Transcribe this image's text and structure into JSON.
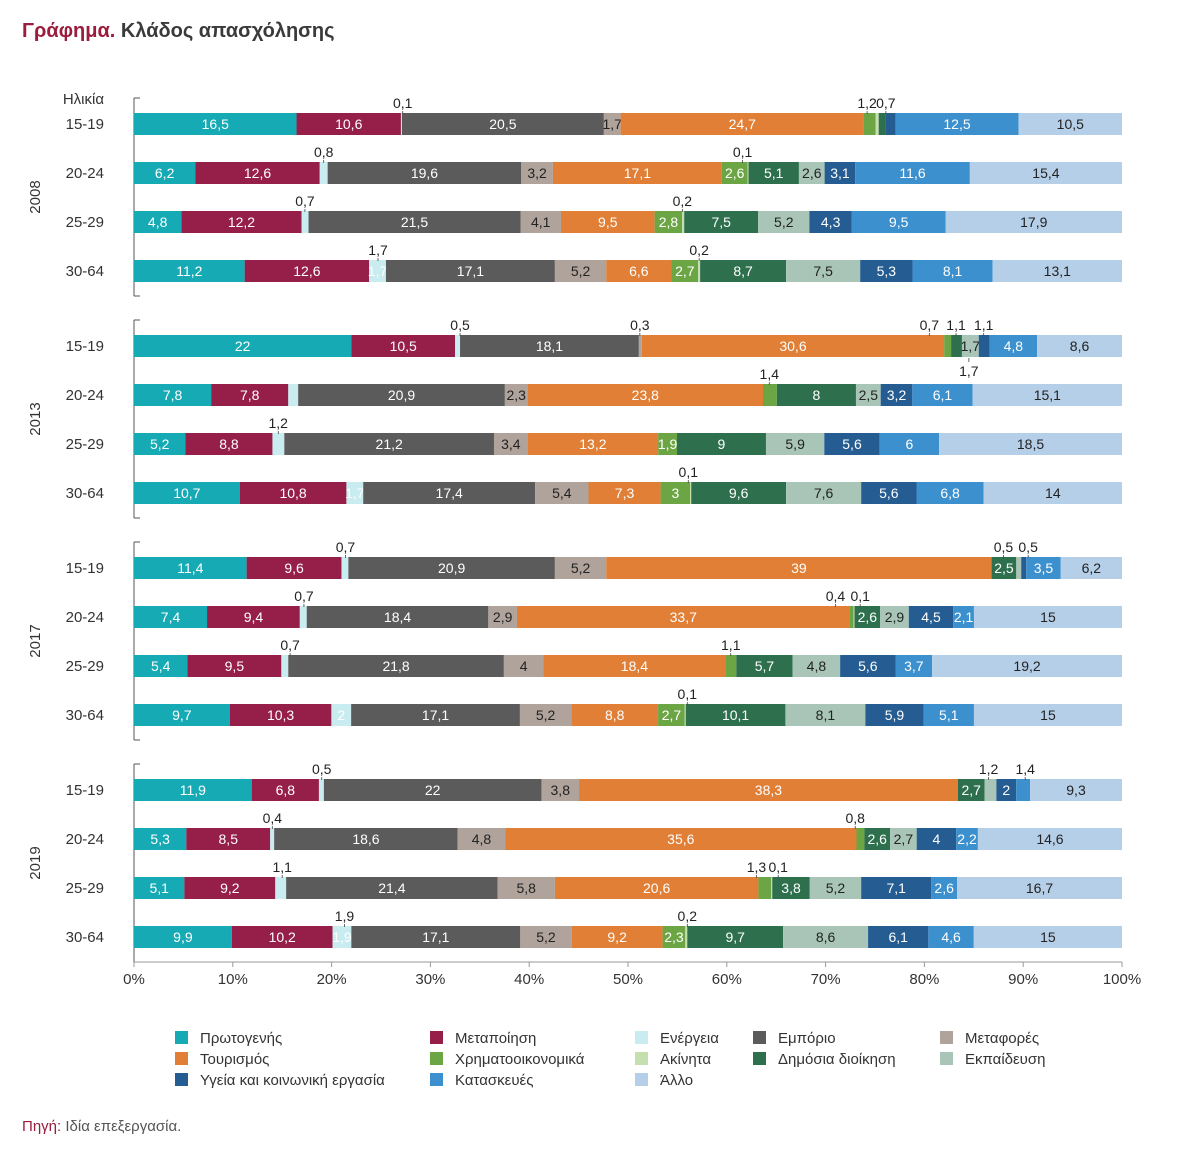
{
  "title_lead": "Γράφημα.",
  "title_rest": "Κλάδος απασχόλησης",
  "age_header": "Ηλικία",
  "source_label": "Πηγή:",
  "source_text": "Ιδία επεξεργασία.",
  "chart_data": {
    "type": "bar",
    "orientation": "horizontal",
    "stacked": "percent",
    "title": "Κλάδος απασχόλησης",
    "xlim": [
      0,
      100
    ],
    "x_ticks": [
      "0%",
      "10%",
      "20%",
      "30%",
      "40%",
      "50%",
      "60%",
      "70%",
      "80%",
      "90%",
      "100%"
    ],
    "grid": false,
    "legend_position": "bottom",
    "series": [
      {
        "name": "Πρωτογενής",
        "color": "#16aab5"
      },
      {
        "name": "Μεταποίηση",
        "color": "#961f4a"
      },
      {
        "name": "Ενέργεια",
        "color": "#c8ecef"
      },
      {
        "name": "Εμπόριο",
        "color": "#5b5b5b"
      },
      {
        "name": "Μεταφορές",
        "color": "#afa39b"
      },
      {
        "name": "Τουρισμός",
        "color": "#e07f35"
      },
      {
        "name": "Χρηματοοικονομικά",
        "color": "#6ca544"
      },
      {
        "name": "Ακίνητα",
        "color": "#c5dfae"
      },
      {
        "name": "Δημόσια διοίκηση",
        "color": "#2e704d"
      },
      {
        "name": "Εκπαίδευση",
        "color": "#a9c5b8"
      },
      {
        "name": "Υγεία και κοινωνική εργασία",
        "color": "#255c91"
      },
      {
        "name": "Κατασκευές",
        "color": "#3c90cd"
      },
      {
        "name": "Άλλο",
        "color": "#b6cfe8"
      }
    ],
    "groups": [
      {
        "year": "2008",
        "rows": [
          {
            "age": "15-19",
            "values": [
              16.5,
              10.6,
              0.1,
              20.5,
              1.7,
              24.7,
              1.2,
              0.3,
              0.7,
              0,
              1,
              12.5,
              10.5
            ]
          },
          {
            "age": "20-24",
            "values": [
              6.2,
              12.6,
              0.8,
              19.6,
              3.2,
              17.1,
              2.6,
              0.1,
              5.1,
              2.6,
              3.1,
              11.6,
              15.4
            ]
          },
          {
            "age": "25-29",
            "values": [
              4.8,
              12.2,
              0.7,
              21.5,
              4.1,
              9.5,
              2.8,
              0.2,
              7.5,
              5.2,
              4.3,
              9.5,
              17.9
            ]
          },
          {
            "age": "30-64",
            "values": [
              11.2,
              12.6,
              1.7,
              17.1,
              5.2,
              6.6,
              2.7,
              0.2,
              8.7,
              7.5,
              5.3,
              8.1,
              13.1
            ]
          }
        ]
      },
      {
        "year": "2013",
        "rows": [
          {
            "age": "15-19",
            "values": [
              22,
              10.5,
              0.5,
              18.1,
              0.3,
              30.6,
              0.7,
              0,
              1.1,
              1.7,
              1.1,
              4.8,
              8.6
            ]
          },
          {
            "age": "20-24",
            "values": [
              7.8,
              7.8,
              1,
              20.9,
              2.3,
              23.8,
              1.4,
              0,
              8,
              2.5,
              3.2,
              6.1,
              15.1
            ]
          },
          {
            "age": "25-29",
            "values": [
              5.2,
              8.8,
              1.2,
              21.2,
              3.4,
              13.2,
              1.9,
              0,
              9,
              5.9,
              5.6,
              6,
              18.5
            ]
          },
          {
            "age": "30-64",
            "values": [
              10.7,
              10.8,
              1.7,
              17.4,
              5.4,
              7.3,
              3,
              0.1,
              9.6,
              7.6,
              5.6,
              6.8,
              14
            ]
          }
        ]
      },
      {
        "year": "2017",
        "rows": [
          {
            "age": "15-19",
            "values": [
              11.4,
              9.6,
              0.7,
              20.9,
              5.2,
              39,
              0,
              0,
              2.5,
              0.5,
              0.5,
              3.5,
              6.2
            ]
          },
          {
            "age": "20-24",
            "values": [
              7.4,
              9.4,
              0.7,
              18.4,
              2.9,
              33.7,
              0.4,
              0.1,
              2.6,
              2.9,
              4.5,
              2.1,
              15
            ]
          },
          {
            "age": "25-29",
            "values": [
              5.4,
              9.5,
              0.7,
              21.8,
              4,
              18.4,
              1.1,
              0,
              5.7,
              4.8,
              5.6,
              3.7,
              19.2
            ]
          },
          {
            "age": "30-64",
            "values": [
              9.7,
              10.3,
              2,
              17.1,
              5.2,
              8.8,
              2.7,
              0.1,
              10.1,
              8.1,
              5.9,
              5.1,
              15
            ]
          }
        ]
      },
      {
        "year": "2019",
        "rows": [
          {
            "age": "15-19",
            "values": [
              11.9,
              6.8,
              0.5,
              22,
              3.8,
              38.3,
              0,
              0,
              2.7,
              1.2,
              2,
              1.4,
              9.3
            ]
          },
          {
            "age": "20-24",
            "values": [
              5.3,
              8.5,
              0.4,
              18.6,
              4.8,
              35.6,
              0.8,
              0,
              2.6,
              2.7,
              4,
              2.2,
              14.6
            ]
          },
          {
            "age": "25-29",
            "values": [
              5.1,
              9.2,
              1.1,
              21.4,
              5.8,
              20.6,
              1.3,
              0.1,
              3.8,
              5.2,
              7.1,
              2.6,
              16.7
            ]
          },
          {
            "age": "30-64",
            "values": [
              9.9,
              10.2,
              1.9,
              17.1,
              5.2,
              9.2,
              2.3,
              0.2,
              9.7,
              8.6,
              6.1,
              4.6,
              15
            ]
          }
        ]
      }
    ],
    "annotations": [
      {
        "group": 0,
        "row": 0,
        "text": "0,1",
        "at_value": 27.2
      },
      {
        "group": 0,
        "row": 0,
        "text": "1,2",
        "at_value": 74.2
      },
      {
        "group": 0,
        "row": 0,
        "text": "0,7",
        "at_value": 76.1
      },
      {
        "group": 0,
        "row": 1,
        "text": "0,8",
        "at_value": 19.2
      },
      {
        "group": 0,
        "row": 1,
        "text": "0,1",
        "at_value": 61.6
      },
      {
        "group": 0,
        "row": 2,
        "text": "0,7",
        "at_value": 17.3
      },
      {
        "group": 0,
        "row": 2,
        "text": "0,2",
        "at_value": 55.5
      },
      {
        "group": 0,
        "row": 3,
        "text": "1,7",
        "at_value": 24.7
      },
      {
        "group": 0,
        "row": 3,
        "text": "0,2",
        "at_value": 57.2
      },
      {
        "group": 1,
        "row": 0,
        "text": "0,5",
        "at_value": 33.0
      },
      {
        "group": 1,
        "row": 0,
        "text": "0,3",
        "at_value": 51.2
      },
      {
        "group": 1,
        "row": 0,
        "text": "0,7",
        "at_value": 80.5
      },
      {
        "group": 1,
        "row": 0,
        "text": "1,1",
        "at_value": 83.2
      },
      {
        "group": 1,
        "row": 0,
        "text": "1,1",
        "at_value": 86.0
      },
      {
        "group": 1,
        "row": 0,
        "text": "1,7",
        "at_value": 84.5,
        "below": true
      },
      {
        "group": 1,
        "row": 1,
        "text": "1,4",
        "at_value": 64.3
      },
      {
        "group": 1,
        "row": 2,
        "text": "1,2",
        "at_value": 14.6
      },
      {
        "group": 1,
        "row": 3,
        "text": "0,1",
        "at_value": 56.1
      },
      {
        "group": 2,
        "row": 0,
        "text": "0,7",
        "at_value": 21.4
      },
      {
        "group": 2,
        "row": 0,
        "text": "0,5",
        "at_value": 88.0
      },
      {
        "group": 2,
        "row": 0,
        "text": "0,5",
        "at_value": 90.5
      },
      {
        "group": 2,
        "row": 1,
        "text": "0,4",
        "at_value": 71.0
      },
      {
        "group": 2,
        "row": 1,
        "text": "0,1",
        "at_value": 73.5
      },
      {
        "group": 2,
        "row": 1,
        "text": "0,7",
        "at_value": 17.2
      },
      {
        "group": 2,
        "row": 2,
        "text": "0,7",
        "at_value": 15.8
      },
      {
        "group": 2,
        "row": 2,
        "text": "1,1",
        "at_value": 60.4
      },
      {
        "group": 2,
        "row": 3,
        "text": "0,1",
        "at_value": 56.0
      },
      {
        "group": 3,
        "row": 0,
        "text": "0,5",
        "at_value": 19.0
      },
      {
        "group": 3,
        "row": 0,
        "text": "1,2",
        "at_value": 86.5
      },
      {
        "group": 3,
        "row": 0,
        "text": "1,4",
        "at_value": 90.2
      },
      {
        "group": 3,
        "row": 1,
        "text": "0,4",
        "at_value": 14.0
      },
      {
        "group": 3,
        "row": 1,
        "text": "0,8",
        "at_value": 73.0
      },
      {
        "group": 3,
        "row": 2,
        "text": "1,1",
        "at_value": 15.0
      },
      {
        "group": 3,
        "row": 2,
        "text": "1,3",
        "at_value": 63.0
      },
      {
        "group": 3,
        "row": 2,
        "text": "0,1",
        "at_value": 65.2
      },
      {
        "group": 3,
        "row": 3,
        "text": "1,9",
        "at_value": 21.3
      },
      {
        "group": 3,
        "row": 3,
        "text": "0,2",
        "at_value": 56.0
      }
    ]
  }
}
